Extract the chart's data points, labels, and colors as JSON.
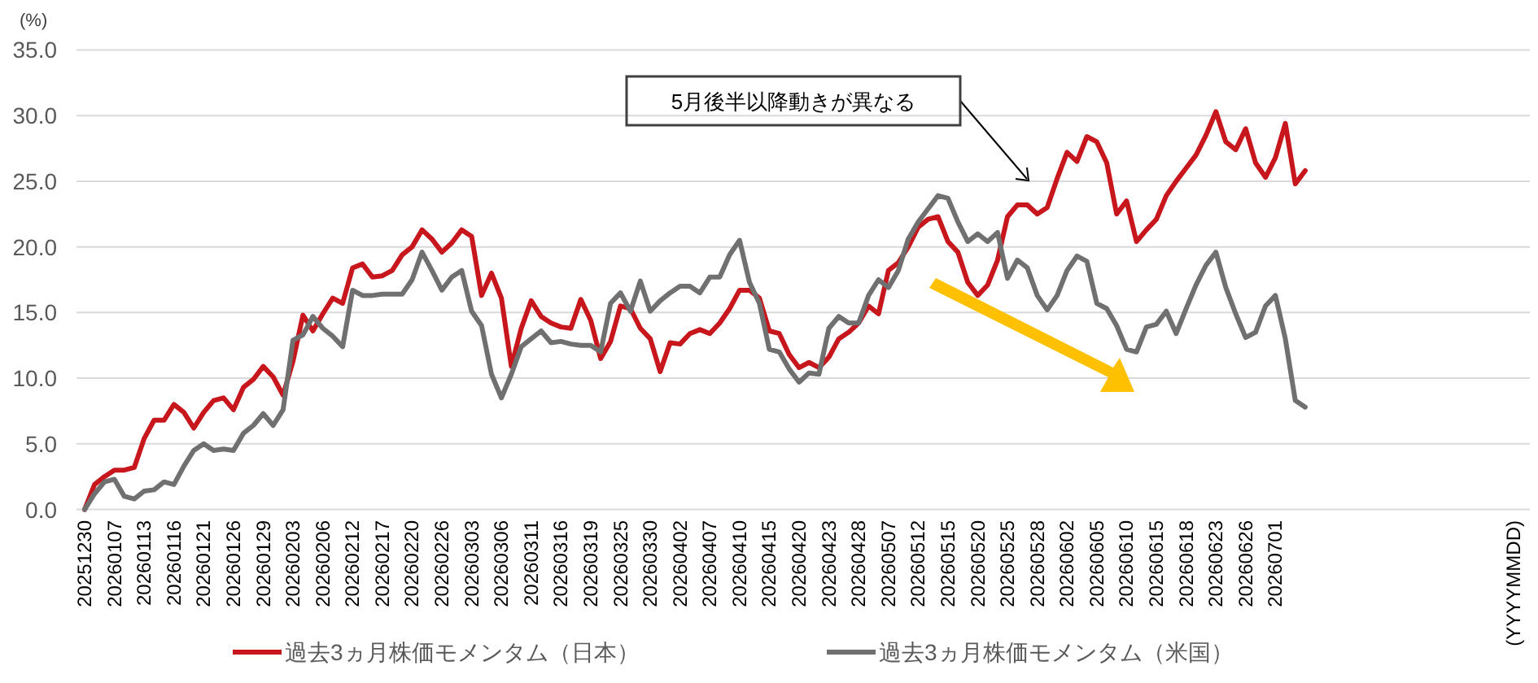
{
  "chart_data": {
    "type": "line",
    "ylabel": "(%)",
    "legend": "bottom",
    "grid": "y",
    "ylim": [
      0,
      35
    ],
    "yticks": [
      {
        "value": 0,
        "label": "0.0"
      },
      {
        "value": 5,
        "label": "5.0"
      },
      {
        "value": 10,
        "label": "10.0"
      },
      {
        "value": 15,
        "label": "15.0"
      },
      {
        "value": 20,
        "label": "20.0"
      },
      {
        "value": 25,
        "label": "25.0"
      },
      {
        "value": 30,
        "label": "30.0"
      },
      {
        "value": 35,
        "label": "35.0"
      }
    ],
    "categories": [
      "20251230",
      null,
      null,
      "20260107",
      null,
      null,
      "20260113",
      null,
      null,
      "20260116",
      null,
      null,
      "20260121",
      null,
      null,
      "20260126",
      null,
      null,
      "20260129",
      null,
      null,
      "20260203",
      null,
      null,
      "20260206",
      null,
      null,
      "20260212",
      null,
      null,
      "20260217",
      null,
      null,
      "20260220",
      null,
      null,
      "20260226",
      null,
      null,
      "20260303",
      null,
      null,
      "20260306",
      null,
      null,
      "20260311",
      null,
      null,
      "20260316",
      null,
      null,
      "20260319",
      null,
      null,
      "20260325",
      null,
      null,
      "20260330",
      null,
      null,
      "20260402",
      null,
      null,
      "20260407",
      null,
      null,
      "20260410",
      null,
      null,
      "20260415",
      null,
      null,
      "20260420",
      null,
      null,
      "20260423",
      null,
      null,
      "20260428",
      null,
      null,
      "20260507",
      null,
      null,
      "20260512",
      null,
      null,
      "20260515",
      null,
      null,
      "20260520",
      null,
      null,
      "20260525",
      null,
      null,
      "20260528",
      null,
      null,
      "20260602",
      null,
      null,
      "20260605",
      null,
      null,
      "20260610",
      null,
      null,
      "20260615",
      null,
      null,
      "20260618",
      null,
      null,
      "20260623",
      null,
      null,
      "20260626",
      null,
      null,
      "20260701",
      null,
      null,
      null,
      null,
      null,
      null,
      null,
      null,
      null,
      null,
      null,
      null,
      null,
      null,
      null,
      null,
      null,
      null,
      null,
      null,
      null,
      null,
      null,
      "(YYYYMMDD)"
    ],
    "series": [
      {
        "name": "過去3ヵ月株価モメンタム（日本）",
        "color": "#c8161d",
        "values": [
          0,
          1.9,
          2.5,
          3.0,
          3.0,
          3.2,
          5.4,
          6.8,
          6.8,
          8.0,
          7.4,
          6.2,
          7.4,
          8.3,
          8.5,
          7.6,
          9.3,
          9.9,
          10.9,
          10.1,
          8.7,
          11.3,
          14.8,
          13.6,
          14.9,
          16.1,
          15.7,
          18.4,
          18.7,
          17.7,
          17.8,
          18.2,
          19.4,
          20.0,
          21.3,
          20.6,
          19.6,
          20.3,
          21.3,
          20.8,
          16.3,
          18.0,
          16.1,
          10.9,
          13.8,
          15.9,
          14.7,
          14.2,
          13.9,
          13.8,
          16.0,
          14.4,
          11.5,
          12.8,
          15.5,
          15.3,
          13.8,
          13.0,
          10.5,
          12.7,
          12.6,
          13.4,
          13.7,
          13.4,
          14.2,
          15.3,
          16.7,
          16.7,
          16.1,
          13.6,
          13.4,
          11.8,
          10.8,
          11.2,
          10.8,
          11.6,
          13.0,
          13.5,
          14.2,
          15.5,
          14.9,
          18.2,
          18.8,
          20.0,
          21.5,
          22.1,
          22.3,
          20.4,
          19.6,
          17.3,
          16.3,
          17.1,
          19.0,
          22.3,
          23.2,
          23.2,
          22.5,
          23.0,
          25.2,
          27.2,
          26.5,
          28.4,
          28.0,
          26.4,
          22.5,
          23.5,
          20.4,
          21.3,
          22.1,
          23.9,
          25.0,
          26.0,
          27.0,
          28.5,
          30.3,
          28.0,
          27.4,
          29.0,
          26.4,
          25.3,
          26.8,
          29.4,
          24.8,
          25.8,
          null,
          null,
          null,
          null,
          null,
          null,
          null,
          null,
          null,
          null,
          null,
          null,
          null,
          null,
          null,
          null,
          null,
          null,
          null,
          null,
          null
        ]
      },
      {
        "name": "過去3ヵ月株価モメンタム（米国）",
        "color": "#707070",
        "values": [
          0,
          1.2,
          2.1,
          2.3,
          1.0,
          0.8,
          1.4,
          1.5,
          2.1,
          1.9,
          3.3,
          4.5,
          5.0,
          4.5,
          4.6,
          4.5,
          5.8,
          6.4,
          7.3,
          6.4,
          7.6,
          12.9,
          13.3,
          14.7,
          13.8,
          13.2,
          12.4,
          16.7,
          16.3,
          16.3,
          16.4,
          16.4,
          16.4,
          17.5,
          19.6,
          18.2,
          16.7,
          17.7,
          18.2,
          15.1,
          14.0,
          10.3,
          8.5,
          10.3,
          12.4,
          13.0,
          13.6,
          12.7,
          12.8,
          12.6,
          12.5,
          12.5,
          12.0,
          15.7,
          16.5,
          15.1,
          17.4,
          15.1,
          15.9,
          16.5,
          17.0,
          17.0,
          16.5,
          17.7,
          17.7,
          19.4,
          20.5,
          17.3,
          15.7,
          12.2,
          12.0,
          10.7,
          9.7,
          10.4,
          10.3,
          13.8,
          14.7,
          14.2,
          14.2,
          16.3,
          17.5,
          16.9,
          18.2,
          20.6,
          21.9,
          22.9,
          23.9,
          23.7,
          21.9,
          20.4,
          21.0,
          20.4,
          21.1,
          17.6,
          19.0,
          18.4,
          16.3,
          15.2,
          16.3,
          18.2,
          19.3,
          18.9,
          15.7,
          15.3,
          14.0,
          12.2,
          12.0,
          13.9,
          14.1,
          15.1,
          13.4,
          15.3,
          17.1,
          18.6,
          19.6,
          16.9,
          14.9,
          13.1,
          13.5,
          15.5,
          16.3,
          13.0,
          8.3,
          7.8,
          null,
          null,
          null,
          null,
          null,
          null,
          null,
          null,
          null,
          null,
          null,
          null,
          null,
          null,
          null,
          null,
          null,
          null,
          null,
          null,
          null
        ]
      }
    ],
    "annotations": [
      "5月後半以降動きが異なる"
    ]
  }
}
